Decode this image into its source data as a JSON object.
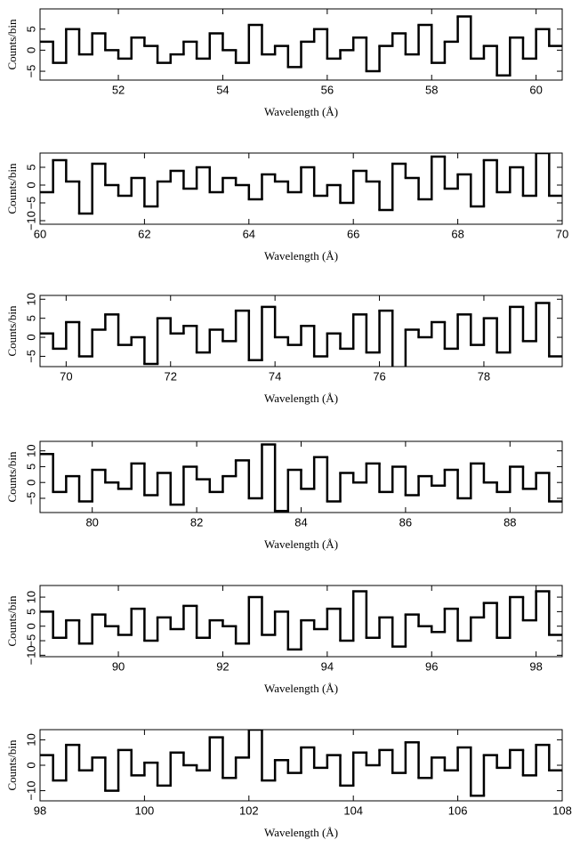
{
  "chart_data": [
    {
      "type": "histogram",
      "xlabel": "Wavelength (Å)",
      "ylabel": "Counts/bin",
      "color": "#000000",
      "xlim": [
        50.5,
        60.5
      ],
      "xticks": [
        52,
        54,
        56,
        58,
        60
      ],
      "ylim": [
        -7.1,
        9.8
      ],
      "yticks": [
        {
          "value": -5,
          "label": "−5"
        },
        0,
        5
      ],
      "bins": [
        50.5,
        50.75,
        51,
        51.25,
        51.5,
        51.75,
        52,
        52.25,
        52.5,
        52.75,
        53,
        53.25,
        53.5,
        53.75,
        54,
        54.25,
        54.5,
        54.75,
        55,
        55.25,
        55.5,
        55.75,
        56,
        56.25,
        56.5,
        56.75,
        57,
        57.25,
        57.5,
        57.75,
        58,
        58.25,
        58.5,
        58.75,
        59,
        59.25,
        59.5,
        59.75,
        60,
        60.25,
        60.5
      ],
      "values": [
        2,
        -3,
        5,
        -1,
        4,
        0,
        -2,
        3,
        1,
        -3,
        -1,
        2,
        -2,
        4,
        0,
        -3,
        6,
        -1,
        1,
        -4,
        2,
        5,
        -2,
        0,
        3,
        -5,
        1,
        4,
        -1,
        6,
        -3,
        2,
        8,
        -2,
        1,
        -6,
        3,
        -2,
        5,
        1
      ]
    },
    {
      "type": "histogram",
      "xlabel": "Wavelength (Å)",
      "ylabel": "Counts/bin",
      "color": "#000000",
      "xlim": [
        60,
        70
      ],
      "xticks": [
        60,
        62,
        64,
        66,
        68,
        70
      ],
      "ylim": [
        -11,
        9
      ],
      "yticks": [
        {
          "value": -10,
          "label": "−10"
        },
        {
          "value": -5,
          "label": "−5"
        },
        0,
        5
      ],
      "bins": [
        60,
        60.25,
        60.5,
        60.75,
        61,
        61.25,
        61.5,
        61.75,
        62,
        62.25,
        62.5,
        62.75,
        63,
        63.25,
        63.5,
        63.75,
        64,
        64.25,
        64.5,
        64.75,
        65,
        65.25,
        65.5,
        65.75,
        66,
        66.25,
        66.5,
        66.75,
        67,
        67.25,
        67.5,
        67.75,
        68,
        68.25,
        68.5,
        68.75,
        69,
        69.25,
        69.5,
        69.75,
        70
      ],
      "values": [
        -2,
        7,
        1,
        -8,
        6,
        0,
        -3,
        2,
        -6,
        1,
        4,
        -1,
        5,
        -2,
        2,
        0,
        -4,
        3,
        1,
        -2,
        5,
        -3,
        0,
        -5,
        4,
        1,
        -7,
        6,
        2,
        -4,
        8,
        -1,
        3,
        -6,
        7,
        -2,
        5,
        -3,
        9,
        -3
      ]
    },
    {
      "type": "histogram",
      "xlabel": "Wavelength (Å)",
      "ylabel": "Counts/bin",
      "color": "#000000",
      "xlim": [
        69.5,
        79.5
      ],
      "xticks": [
        70,
        72,
        74,
        76,
        78
      ],
      "ylim": [
        -7.7,
        11
      ],
      "yticks": [
        {
          "value": -5,
          "label": "−5"
        },
        0,
        5,
        10
      ],
      "bins": [
        69.5,
        69.75,
        70,
        70.25,
        70.5,
        70.75,
        71,
        71.25,
        71.5,
        71.75,
        72,
        72.25,
        72.5,
        72.75,
        73,
        73.25,
        73.5,
        73.75,
        74,
        74.25,
        74.5,
        74.75,
        75,
        75.25,
        75.5,
        75.75,
        76,
        76.25,
        76.5,
        76.75,
        77,
        77.25,
        77.5,
        77.75,
        78,
        78.25,
        78.5,
        78.75,
        79,
        79.25,
        79.5
      ],
      "values": [
        1,
        -3,
        4,
        -5,
        2,
        6,
        -2,
        0,
        -7,
        5,
        1,
        3,
        -4,
        2,
        -1,
        7,
        -6,
        8,
        0,
        -2,
        3,
        -5,
        1,
        -3,
        6,
        -4,
        7,
        -8,
        2,
        0,
        4,
        -3,
        6,
        -2,
        5,
        -4,
        8,
        -1,
        9,
        -5
      ]
    },
    {
      "type": "histogram",
      "xlabel": "Wavelength (Å)",
      "ylabel": "Counts/bin",
      "color": "#000000",
      "xlim": [
        79,
        89
      ],
      "xticks": [
        80,
        82,
        84,
        86,
        88
      ],
      "ylim": [
        -9.5,
        13
      ],
      "yticks": [
        {
          "value": -5,
          "label": "−5"
        },
        0,
        5,
        10
      ],
      "bins": [
        79,
        79.25,
        79.5,
        79.75,
        80,
        80.25,
        80.5,
        80.75,
        81,
        81.25,
        81.5,
        81.75,
        82,
        82.25,
        82.5,
        82.75,
        83,
        83.25,
        83.5,
        83.75,
        84,
        84.25,
        84.5,
        84.75,
        85,
        85.25,
        85.5,
        85.75,
        86,
        86.25,
        86.5,
        86.75,
        87,
        87.25,
        87.5,
        87.75,
        88,
        88.25,
        88.5,
        88.75,
        89
      ],
      "values": [
        9,
        -3,
        2,
        -6,
        4,
        0,
        -2,
        6,
        -4,
        3,
        -7,
        5,
        1,
        -3,
        2,
        7,
        -5,
        12,
        -9,
        4,
        -2,
        8,
        -6,
        3,
        0,
        6,
        -3,
        5,
        -4,
        2,
        -1,
        4,
        -5,
        6,
        0,
        -3,
        5,
        -2,
        3,
        -6
      ]
    },
    {
      "type": "histogram",
      "xlabel": "Wavelength (Å)",
      "ylabel": "Counts/bin",
      "color": "#000000",
      "xlim": [
        88.5,
        98.5
      ],
      "xticks": [
        90,
        92,
        94,
        96,
        98
      ],
      "ylim": [
        -10.5,
        14
      ],
      "yticks": [
        {
          "value": -10,
          "label": "−10"
        },
        {
          "value": -5,
          "label": "−5"
        },
        0,
        5,
        10
      ],
      "bins": [
        88.5,
        88.75,
        89,
        89.25,
        89.5,
        89.75,
        90,
        90.25,
        90.5,
        90.75,
        91,
        91.25,
        91.5,
        91.75,
        92,
        92.25,
        92.5,
        92.75,
        93,
        93.25,
        93.5,
        93.75,
        94,
        94.25,
        94.5,
        94.75,
        95,
        95.25,
        95.5,
        95.75,
        96,
        96.25,
        96.5,
        96.75,
        97,
        97.25,
        97.5,
        97.75,
        98,
        98.25,
        98.5
      ],
      "values": [
        5,
        -4,
        2,
        -6,
        4,
        0,
        -3,
        6,
        -5,
        3,
        -1,
        7,
        -4,
        2,
        0,
        -6,
        10,
        -3,
        5,
        -8,
        2,
        -1,
        6,
        -5,
        12,
        -4,
        3,
        -7,
        4,
        0,
        -2,
        6,
        -5,
        3,
        8,
        -4,
        10,
        2,
        12,
        -3
      ]
    },
    {
      "type": "histogram",
      "xlabel": "Wavelength (Å)",
      "ylabel": "Counts/bin",
      "color": "#000000",
      "xlim": [
        98,
        108
      ],
      "xticks": [
        98,
        100,
        102,
        104,
        106,
        108
      ],
      "ylim": [
        -14,
        14
      ],
      "yticks": [
        {
          "value": -10,
          "label": "−10"
        },
        0,
        10
      ],
      "bins": [
        98,
        98.25,
        98.5,
        98.75,
        99,
        99.25,
        99.5,
        99.75,
        100,
        100.25,
        100.5,
        100.75,
        101,
        101.25,
        101.5,
        101.75,
        102,
        102.25,
        102.5,
        102.75,
        103,
        103.25,
        103.5,
        103.75,
        104,
        104.25,
        104.5,
        104.75,
        105,
        105.25,
        105.5,
        105.75,
        106,
        106.25,
        106.5,
        106.75,
        107,
        107.25,
        107.5,
        107.75,
        108
      ],
      "values": [
        4,
        -6,
        8,
        -2,
        3,
        -10,
        6,
        -4,
        1,
        -8,
        5,
        0,
        -2,
        11,
        -5,
        3,
        14,
        -6,
        2,
        -3,
        7,
        -1,
        4,
        -8,
        5,
        0,
        6,
        -3,
        9,
        -5,
        3,
        -2,
        7,
        -12,
        4,
        -1,
        6,
        -4,
        8,
        -2
      ]
    }
  ]
}
